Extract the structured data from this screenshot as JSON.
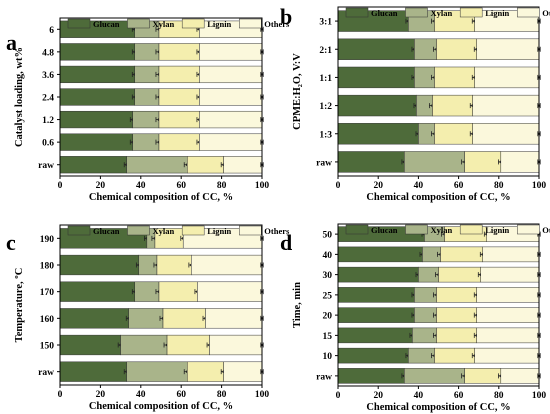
{
  "colors": {
    "glucan": "#4e6b3a",
    "xylan": "#a9b48a",
    "lignin": "#f4eeae",
    "others": "#fbf8dc",
    "frame": "#000000"
  },
  "chart_data": [
    {
      "type": "bar",
      "orientation": "horizontal",
      "stacked": true,
      "panel_label": "a",
      "title": "",
      "xlabel": "Chemical composition of CC, %",
      "ylabel": "Catalyst loading, wt%",
      "xlim": [
        0,
        100
      ],
      "xticks": [
        "0",
        "20",
        "40",
        "60",
        "80",
        "100"
      ],
      "legend": {
        "placement": "top",
        "entries": [
          "Glucan",
          "Xylan",
          "Lignin",
          "Others"
        ]
      },
      "categories": [
        "raw",
        "0.6",
        "1.2",
        "2.4",
        "3.6",
        "4.8",
        "6"
      ],
      "series": [
        {
          "name": "Glucan",
          "values": [
            33,
            36,
            36,
            37,
            37,
            37,
            37
          ]
        },
        {
          "name": "Xylan",
          "values": [
            30,
            13,
            13,
            12,
            12,
            12,
            12
          ]
        },
        {
          "name": "Lignin",
          "values": [
            18,
            20,
            20,
            20,
            20,
            20,
            20
          ]
        },
        {
          "name": "Others",
          "values": [
            19,
            31,
            31,
            31,
            31,
            31,
            31
          ]
        }
      ]
    },
    {
      "type": "bar",
      "orientation": "horizontal",
      "stacked": true,
      "panel_label": "b",
      "title": "",
      "xlabel": "Chemical composition of CC, %",
      "ylabel": "CPME:H₂O, V:V",
      "xlim": [
        0,
        100
      ],
      "xticks": [
        "0",
        "20",
        "40",
        "60",
        "80",
        "100"
      ],
      "legend": {
        "placement": "top",
        "entries": [
          "Glucan",
          "Xylan",
          "Lignin",
          "Others"
        ]
      },
      "categories": [
        "raw",
        "1:3",
        "1:2",
        "1:1",
        "2:1",
        "3:1"
      ],
      "series": [
        {
          "name": "Glucan",
          "values": [
            33,
            40,
            39,
            38,
            38,
            35
          ]
        },
        {
          "name": "Xylan",
          "values": [
            30,
            8,
            8,
            10,
            11,
            13
          ]
        },
        {
          "name": "Lignin",
          "values": [
            18,
            19,
            20,
            20,
            20,
            20
          ]
        },
        {
          "name": "Others",
          "values": [
            19,
            33,
            33,
            32,
            31,
            32
          ]
        }
      ]
    },
    {
      "type": "bar",
      "orientation": "horizontal",
      "stacked": true,
      "panel_label": "c",
      "title": "",
      "xlabel": "Chemical composition of CC, %",
      "ylabel": "Temperature, ºC",
      "xlim": [
        0,
        100
      ],
      "xticks": [
        "0",
        "20",
        "40",
        "60",
        "80",
        "100"
      ],
      "legend": {
        "placement": "top",
        "entries": [
          "Glucan",
          "Xylan",
          "Lignin",
          "Others"
        ]
      },
      "categories": [
        "raw",
        "150",
        "160",
        "170",
        "180",
        "190"
      ],
      "series": [
        {
          "name": "Glucan",
          "values": [
            33,
            30,
            34,
            37,
            39,
            43
          ]
        },
        {
          "name": "Xylan",
          "values": [
            30,
            23,
            17,
            12,
            9,
            4
          ]
        },
        {
          "name": "Lignin",
          "values": [
            18,
            21,
            21,
            19,
            17,
            14
          ]
        },
        {
          "name": "Others",
          "values": [
            19,
            26,
            28,
            32,
            35,
            39
          ]
        }
      ]
    },
    {
      "type": "bar",
      "orientation": "horizontal",
      "stacked": true,
      "panel_label": "d",
      "title": "",
      "xlabel": "Chemical composition of CC, %",
      "ylabel": "Time, min",
      "xlim": [
        0,
        100
      ],
      "xticks": [
        "0",
        "20",
        "40",
        "60",
        "80",
        "100"
      ],
      "legend": {
        "placement": "top",
        "entries": [
          "Glucan",
          "Xylan",
          "Lignin",
          "Others"
        ]
      },
      "categories": [
        "raw",
        "10",
        "15",
        "20",
        "25",
        "30",
        "40",
        "50"
      ],
      "series": [
        {
          "name": "Glucan",
          "values": [
            33,
            35,
            37,
            38,
            38,
            40,
            42,
            43
          ]
        },
        {
          "name": "Xylan",
          "values": [
            30,
            13,
            12,
            11,
            11,
            10,
            9,
            10
          ]
        },
        {
          "name": "Lignin",
          "values": [
            18,
            20,
            20,
            20,
            20,
            21,
            21,
            21
          ]
        },
        {
          "name": "Others",
          "values": [
            19,
            32,
            31,
            31,
            31,
            29,
            28,
            26
          ]
        }
      ]
    }
  ]
}
